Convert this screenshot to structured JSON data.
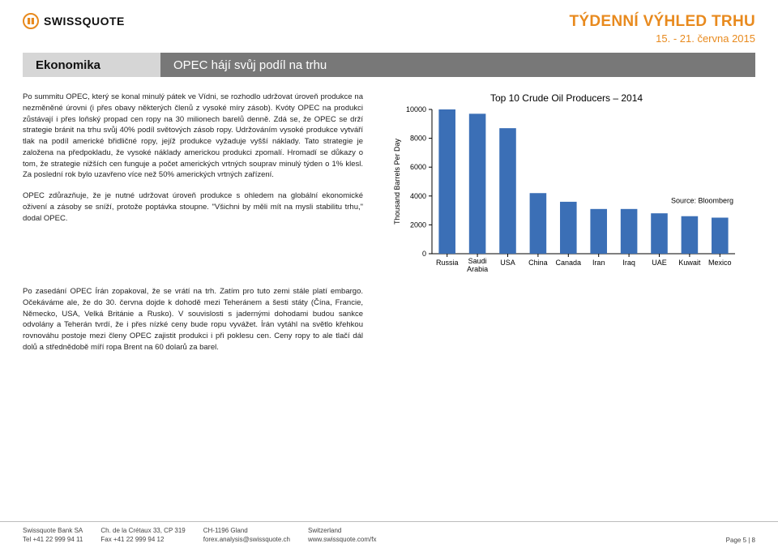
{
  "logo": {
    "text": "SWISSQUOTE"
  },
  "header": {
    "title": "TÝDENNÍ VÝHLED TRHU",
    "date": "15. - 21. června 2015"
  },
  "section": {
    "left": "Ekonomika",
    "right": "OPEC hájí svůj podíl na trhu"
  },
  "body": {
    "p1": "Po summitu OPEC, který se konal minulý pátek ve Vídni, se rozhodlo udržovat úroveň produkce na nezměněné úrovni (i přes obavy některých členů z vysoké míry zásob). Kvóty OPEC na produkci zůstávají i přes loňský propad cen ropy na 30 milionech barelů denně. Zdá se, že OPEC se drží strategie bránit na trhu svůj 40% podíl světových zásob ropy. Udržováním vysoké produkce vytváří tlak na podíl americké břidličné ropy, jejíž produkce vyžaduje vyšší náklady. Tato strategie je založena na předpokladu, že vysoké náklady americkou produkci zpomalí. Hromadí se důkazy o tom, že strategie nižších cen funguje a počet amerických vrtných souprav minulý týden o 1% klesl. Za poslední rok bylo uzavřeno více než 50% amerických vrtných zařízení.",
    "p2": "OPEC zdůrazňuje, že je nutné udržovat úroveň produkce s ohledem na globální ekonomické oživení a zásoby se sníží, protože poptávka stoupne. \"Všichni by měli mít na mysli stabilitu trhu,\" dodal OPEC.",
    "p3": "Po zasedání OPEC Írán zopakoval, že se vrátí na trh. Zatím pro tuto zemi stále platí embargo. Očekáváme ale, že do 30. června dojde k dohodě mezi Teheránem a šesti státy (Čína, Francie, Německo, USA, Velká Británie a Rusko). V souvislosti s jadernými dohodami budou sankce odvolány a Teherán tvrdí, že i přes nízké ceny bude ropu vyvážet. Írán vytáhl na světlo křehkou rovnováhu postoje mezi členy OPEC zajistit produkci i při poklesu cen. Ceny ropy to ale tlačí dál dolů a střednědobě míří ropa Brent na 60 dolarů za barel."
  },
  "chart": {
    "type": "bar",
    "title": "Top 10 Crude Oil Producers – 2014",
    "ylabel": "Thousand Barrels Per Day",
    "ymin": 0,
    "ymax": 10000,
    "ytick_step": 2000,
    "yticks": [
      0,
      2000,
      4000,
      6000,
      8000,
      10000
    ],
    "categories": [
      "Russia",
      "Saudi Arabia",
      "USA",
      "China",
      "Canada",
      "Iran",
      "Iraq",
      "UAE",
      "Kuwait",
      "Mexico"
    ],
    "values": [
      10100,
      9700,
      8700,
      4200,
      3600,
      3100,
      3100,
      2800,
      2600,
      2500
    ],
    "bar_color": "#3b6fb6",
    "axis_color": "#000000",
    "background_color": "#ffffff",
    "label_fontsize": 9,
    "title_fontsize": 12,
    "source": "Source: Bloomberg"
  },
  "footer": {
    "c1": {
      "l1": "Swissquote Bank SA",
      "l2": "Tel +41 22 999 94 11"
    },
    "c2": {
      "l1": "Ch. de la Crétaux 33, CP 319",
      "l2": "Fax +41 22 999 94 12"
    },
    "c3": {
      "l1": "CH-1196 Gland",
      "l2": "forex.analysis@swissquote.ch"
    },
    "c4": {
      "l1": "Switzerland",
      "l2": "www.swissquote.com/fx"
    },
    "page": "Page 5 | 8"
  }
}
